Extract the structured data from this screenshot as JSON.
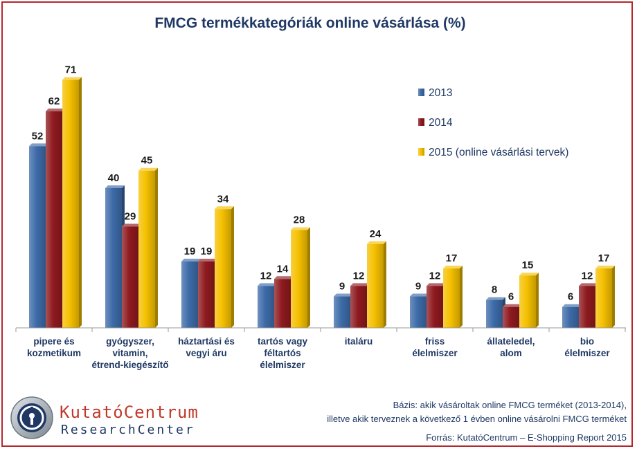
{
  "chart_data": {
    "type": "bar",
    "title": "FMCG termékkategóriák online vásárlása (%)",
    "categories": [
      [
        "pipere és",
        "kozmetikum"
      ],
      [
        "gyógyszer,",
        "vitamin,",
        "étrend-kiegészítő"
      ],
      [
        "háztartási és",
        "vegyi áru"
      ],
      [
        "tartós vagy",
        "féltartós",
        "élelmiszer"
      ],
      [
        "italáru"
      ],
      [
        "friss",
        "élelmiszer"
      ],
      [
        "állateledel,",
        "alom"
      ],
      [
        "bio",
        "élelmiszer"
      ]
    ],
    "series": [
      {
        "name": "2013",
        "color": "#3d6ba8",
        "values": [
          52,
          40,
          19,
          12,
          9,
          9,
          8,
          6
        ]
      },
      {
        "name": "2014",
        "color": "#8e1a1f",
        "values": [
          62,
          29,
          19,
          14,
          12,
          12,
          6,
          12
        ]
      },
      {
        "name": "2015 (online vásárlási tervek)",
        "color": "#f5c000",
        "values": [
          71,
          45,
          34,
          28,
          24,
          17,
          15,
          17
        ]
      }
    ],
    "ylim": [
      0,
      78
    ],
    "legend_position": "top-right",
    "grid": false
  },
  "footer": {
    "basis_line1": "Bázis: akik vásároltak online FMCG terméket (2013-2014),",
    "basis_line2": "illetve akik terveznek a következő 1 évben online vásárolni FMCG terméket",
    "source": "Forrás: KutatóCentrum – E-Shopping Report 2015"
  },
  "logo": {
    "name_line1": "KutatóCentrum",
    "name_line2": "ResearchCenter"
  }
}
